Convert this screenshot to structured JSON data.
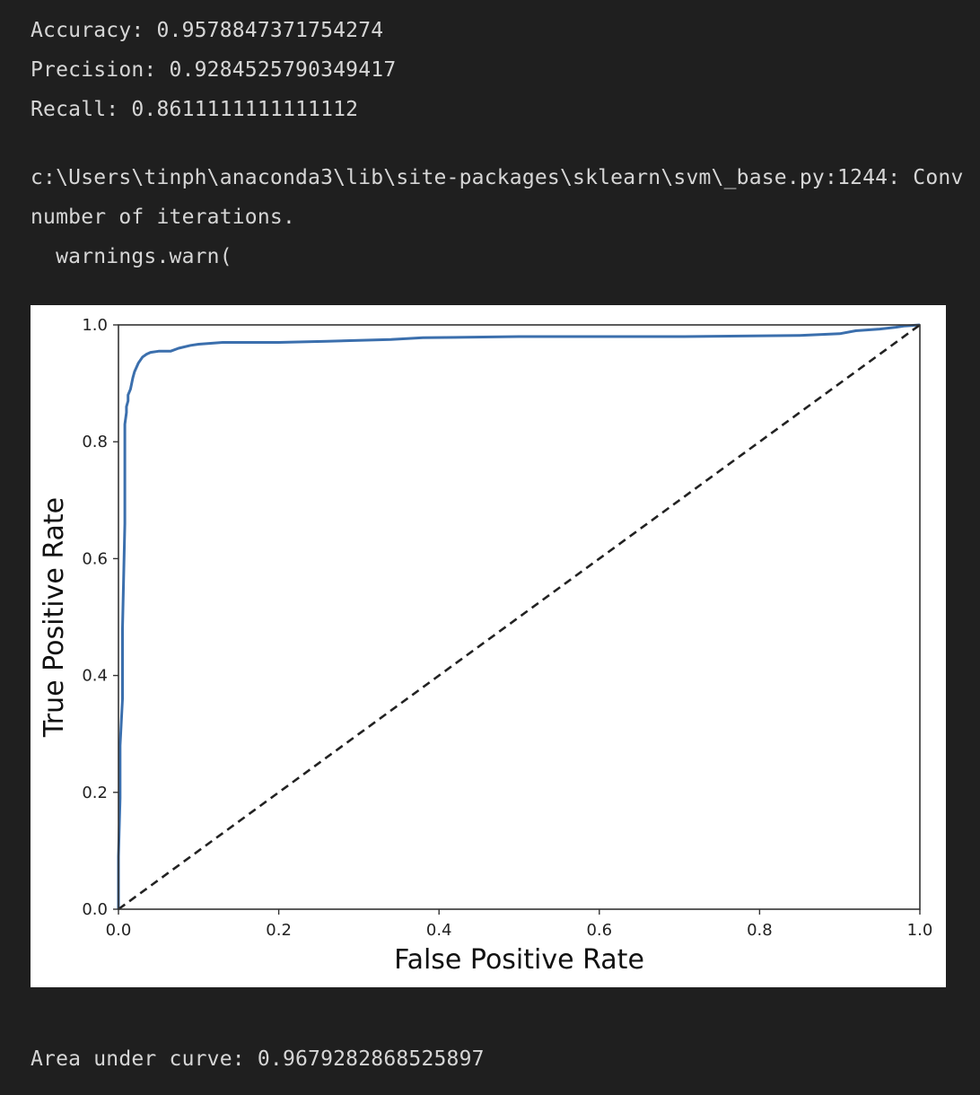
{
  "metrics": {
    "accuracy": "Accuracy: 0.9578847371754274",
    "precision": "Precision: 0.9284525790349417",
    "recall": "Recall: 0.8611111111111112"
  },
  "warning": {
    "line1": "c:\\Users\\tinph\\anaconda3\\lib\\site-packages\\sklearn\\svm\\_base.py:1244: Conv",
    "line2": "number of iterations.",
    "line3": "  warnings.warn("
  },
  "auc_text": "Area under curve: 0.9679282868525897",
  "colors": {
    "background": "#1f1f1f",
    "text": "#d6d6d6",
    "roc_line": "#3b6fad",
    "diagonal": "#222222"
  },
  "chart_data": {
    "type": "line",
    "title": "",
    "xlabel": "False Positive Rate",
    "ylabel": "True Positive Rate",
    "xlim": [
      0.0,
      1.0
    ],
    "ylim": [
      0.0,
      1.0
    ],
    "x_ticks": [
      "0.0",
      "0.2",
      "0.4",
      "0.6",
      "0.8",
      "1.0"
    ],
    "y_ticks": [
      "0.0",
      "0.2",
      "0.4",
      "0.6",
      "0.8",
      "1.0"
    ],
    "grid": false,
    "legend": "none",
    "series": [
      {
        "style": "solid",
        "color": "#3b6fad",
        "x": [
          0.0,
          0.0,
          0.002,
          0.002,
          0.005,
          0.005,
          0.008,
          0.008,
          0.01,
          0.01,
          0.012,
          0.012,
          0.015,
          0.018,
          0.02,
          0.025,
          0.03,
          0.035,
          0.04,
          0.05,
          0.065,
          0.075,
          0.09,
          0.1,
          0.13,
          0.2,
          0.26,
          0.34,
          0.38,
          0.5,
          0.7,
          0.85,
          0.9,
          0.92,
          0.95,
          0.97,
          0.98,
          1.0
        ],
        "y": [
          0.0,
          0.09,
          0.19,
          0.28,
          0.36,
          0.48,
          0.66,
          0.83,
          0.85,
          0.86,
          0.87,
          0.88,
          0.89,
          0.91,
          0.92,
          0.935,
          0.945,
          0.95,
          0.953,
          0.955,
          0.955,
          0.96,
          0.965,
          0.967,
          0.97,
          0.97,
          0.972,
          0.975,
          0.978,
          0.98,
          0.98,
          0.982,
          0.985,
          0.99,
          0.993,
          0.996,
          0.998,
          1.0
        ]
      },
      {
        "style": "dashed",
        "color": "#222222",
        "x": [
          0.0,
          1.0
        ],
        "y": [
          0.0,
          1.0
        ]
      }
    ]
  }
}
